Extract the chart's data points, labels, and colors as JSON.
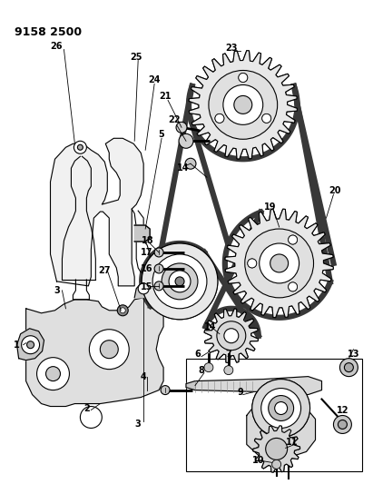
{
  "title": "9158 2500",
  "bg_color": "#ffffff",
  "line_color": "#000000",
  "title_fontsize": 9,
  "label_fontsize": 7,
  "fig_width": 4.11,
  "fig_height": 5.33,
  "dpi": 100,
  "bracket_color": "#e8e8e8",
  "cover_color": "#d8d8d8",
  "gear_fill": "#e0e0e0",
  "belt_color": "#404040",
  "shaft_color": "#d0d0d0"
}
